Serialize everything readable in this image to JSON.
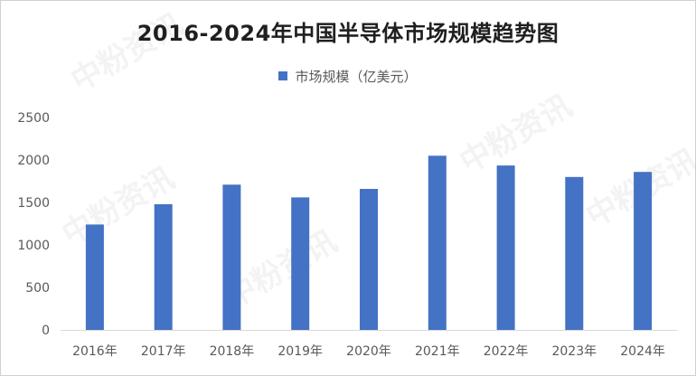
{
  "chart_data": {
    "type": "bar",
    "title": "2016-2024年中国半导体市场规模趋势图",
    "categories": [
      "2016年",
      "2017年",
      "2018年",
      "2019年",
      "2020年",
      "2021年",
      "2022年",
      "2023年",
      "2024年"
    ],
    "series": [
      {
        "name": "市场规模（亿美元）",
        "values": [
          1240,
          1480,
          1710,
          1560,
          1660,
          2050,
          1935,
          1800,
          1860
        ]
      }
    ],
    "xlabel": "",
    "ylabel": "",
    "ylim": [
      0,
      2500
    ],
    "yticks": [
      0,
      500,
      1000,
      1500,
      2000,
      2500
    ],
    "grid": false,
    "legend_position": "top",
    "bar_color": "#4472C4"
  },
  "watermark": {
    "text": "中粉资讯"
  }
}
